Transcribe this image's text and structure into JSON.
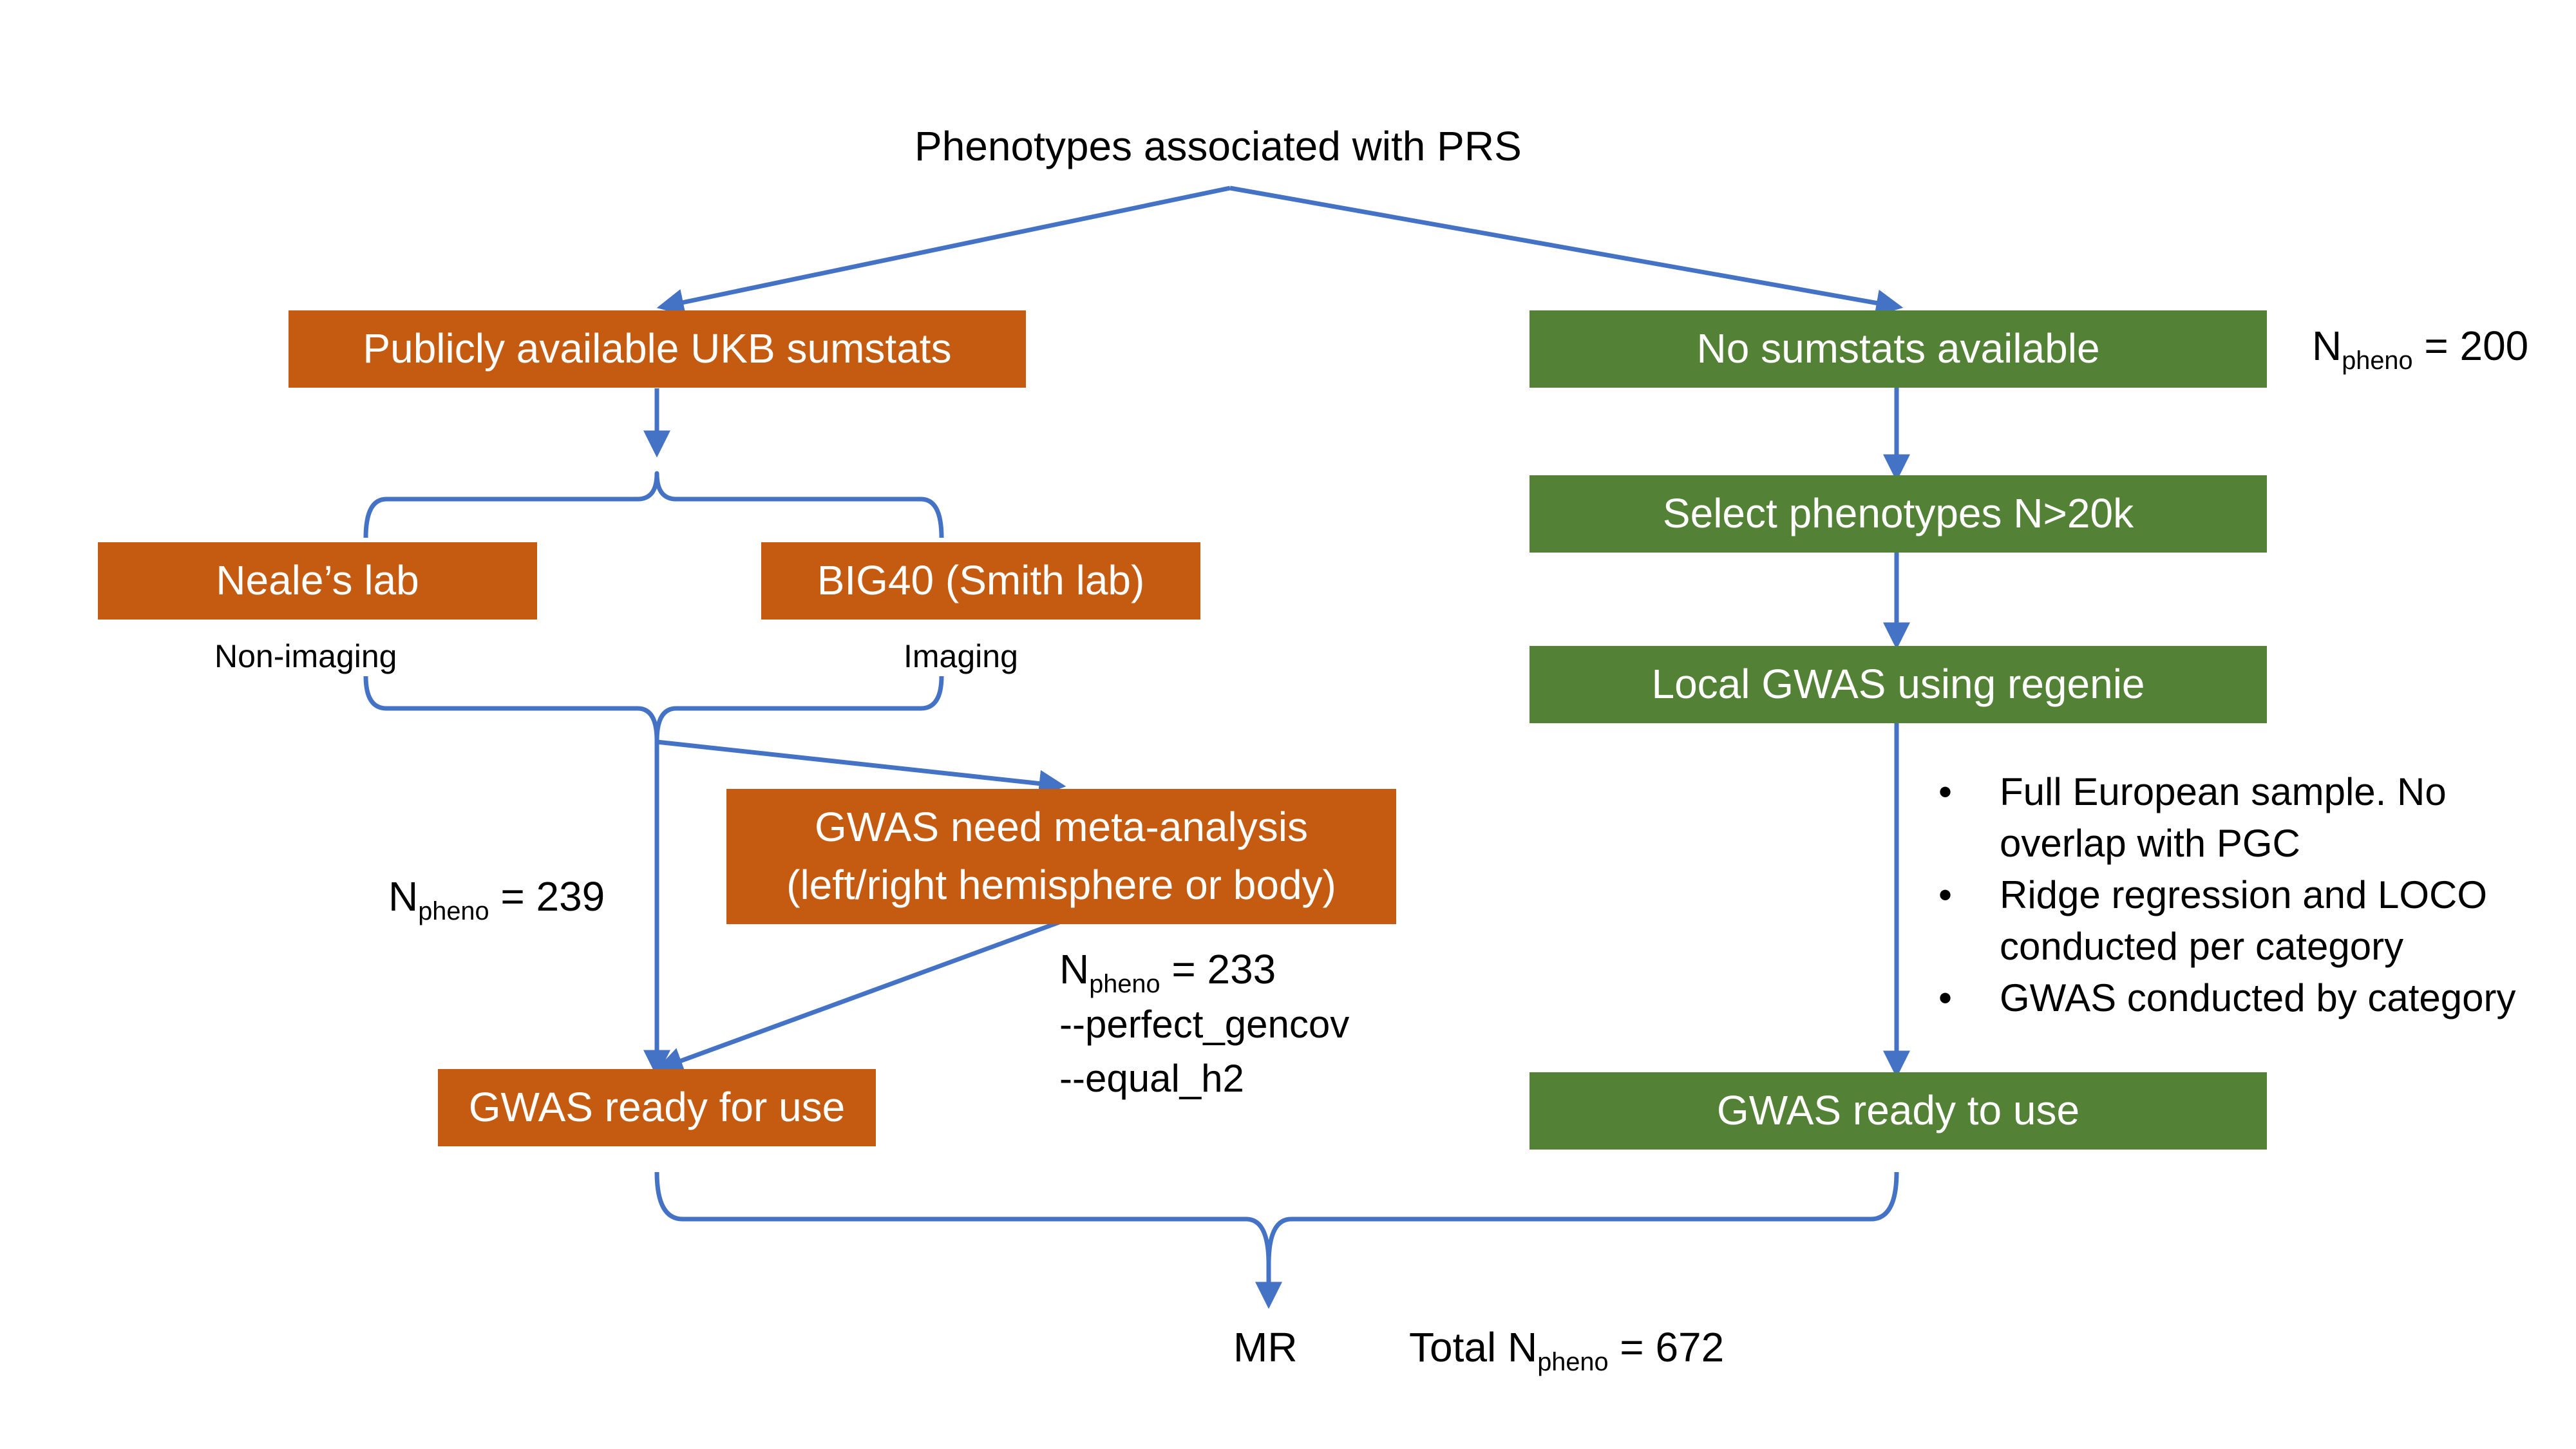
{
  "title": "Phenotypes associated with PRS",
  "left": {
    "source_box": "Publicly available UKB sumstats",
    "neale_box": "Neale’s lab",
    "neale_label": "Non-imaging",
    "big40_box": "BIG40 (Smith lab)",
    "big40_label": "Imaging",
    "meta_box_line1": "GWAS need meta-analysis",
    "meta_box_line2": "(left/right hemisphere or body)",
    "npheno_239": {
      "prefix": "N",
      "sub": "pheno",
      "rest": " = 239"
    },
    "npheno_233": {
      "prefix": "N",
      "sub": "pheno",
      "rest": " = 233"
    },
    "flag1": "--perfect_gencov",
    "flag2": "--equal_h2",
    "ready_box": "GWAS ready for use"
  },
  "right": {
    "source_box": "No sumstats available",
    "npheno_200": {
      "prefix": "N",
      "sub": "pheno",
      "rest": " = 200"
    },
    "select_box": "Select phenotypes N>20k",
    "local_box": "Local GWAS using regenie",
    "bullets": [
      {
        "line1": "Full European sample. No",
        "line2": "overlap with PGC"
      },
      {
        "line1": "Ridge regression and LOCO",
        "line2": "conducted per category"
      },
      {
        "line1": "GWAS conducted by category",
        "line2": ""
      }
    ],
    "ready_box": "GWAS ready to use"
  },
  "bottom": {
    "mr": "MR",
    "total": {
      "prefix": "Total N",
      "sub": "pheno",
      "rest": " = 672"
    }
  },
  "colors": {
    "orange": "#c55a11",
    "green": "#538135",
    "arrow": "#4472c4"
  }
}
